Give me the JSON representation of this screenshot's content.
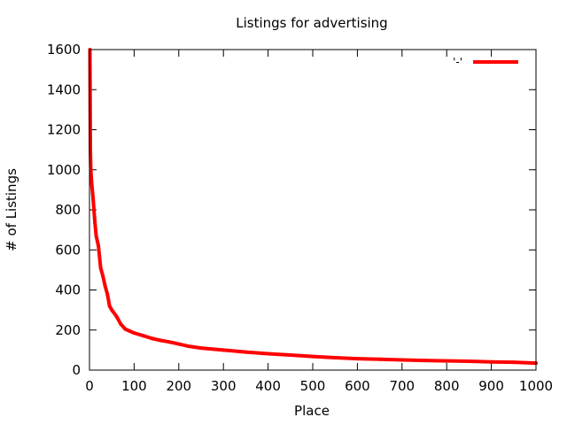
{
  "chart_data": {
    "type": "line",
    "title": "Listings for advertising",
    "xlabel": "Place",
    "ylabel": "# of Listings",
    "xlim": [
      0,
      1000
    ],
    "ylim": [
      0,
      1600
    ],
    "x_ticks": [
      "0",
      "100",
      "200",
      "300",
      "400",
      "500",
      "600",
      "700",
      "800",
      "900",
      "1000"
    ],
    "y_ticks": [
      "0",
      "200",
      "400",
      "600",
      "800",
      "1000",
      "1200",
      "1400",
      "1600"
    ],
    "grid": false,
    "legend_position": "top-right",
    "series": [
      {
        "name": "'-'",
        "color": "#ff0000",
        "x": [
          1,
          2,
          3,
          5,
          8,
          12,
          15,
          20,
          25,
          30,
          35,
          40,
          45,
          50,
          60,
          70,
          80,
          90,
          100,
          120,
          140,
          160,
          180,
          200,
          220,
          250,
          300,
          350,
          400,
          450,
          500,
          550,
          600,
          650,
          700,
          750,
          800,
          850,
          900,
          950,
          1000
        ],
        "y": [
          1600,
          1100,
          1000,
          930,
          860,
          740,
          670,
          620,
          510,
          470,
          420,
          380,
          320,
          300,
          270,
          230,
          205,
          195,
          185,
          172,
          158,
          148,
          140,
          130,
          120,
          110,
          100,
          90,
          82,
          75,
          68,
          62,
          57,
          54,
          51,
          48,
          46,
          44,
          41,
          39,
          35
        ]
      }
    ]
  }
}
